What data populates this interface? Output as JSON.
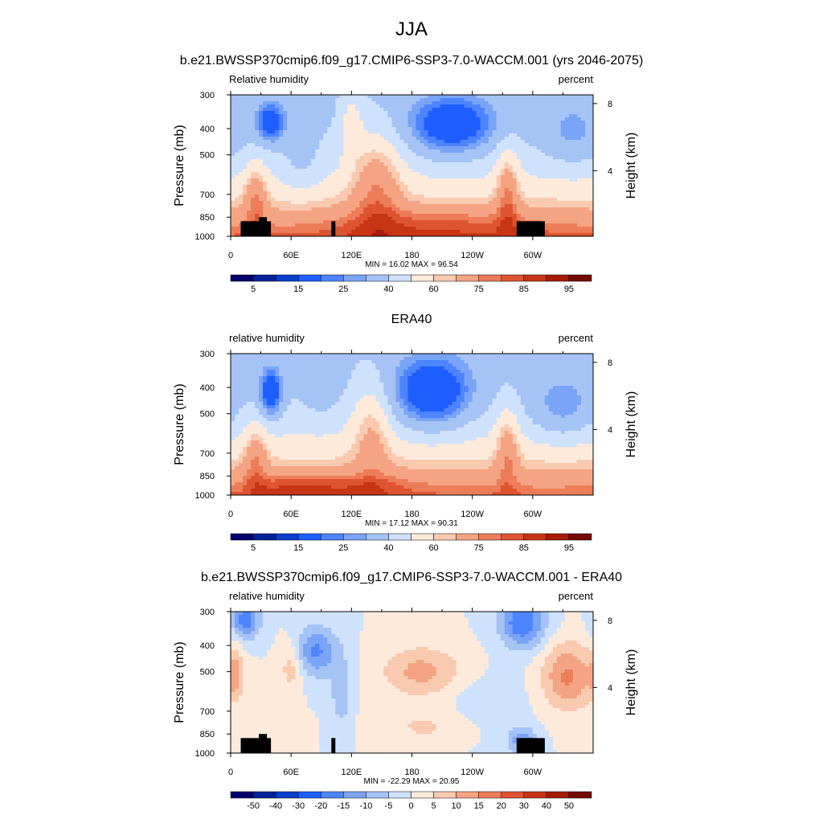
{
  "figure": {
    "title": "JJA"
  },
  "colorbars": {
    "absolute": {
      "colors": [
        "#03006d",
        "#00229a",
        "#0a3ecd",
        "#1e5eff",
        "#4d84ff",
        "#7aa4f5",
        "#a6c3f5",
        "#cfe2fd",
        "#fdeadb",
        "#f9cab0",
        "#f4a482",
        "#ed7c59",
        "#de5430",
        "#c73515",
        "#a61b07",
        "#750a00"
      ],
      "tick_labels": [
        "5",
        "15",
        "25",
        "40",
        "60",
        "75",
        "85",
        "95"
      ],
      "tick_boundaries": [
        1,
        3,
        5,
        7,
        9,
        11,
        13,
        15
      ]
    },
    "difference": {
      "colors": [
        "#03006d",
        "#00229a",
        "#0a3ecd",
        "#1e5eff",
        "#4d84ff",
        "#7aa4f5",
        "#a6c3f5",
        "#cfe2fd",
        "#fdeadb",
        "#f9cab0",
        "#f4a482",
        "#ed7c59",
        "#de5430",
        "#c73515",
        "#a61b07",
        "#750a00"
      ],
      "tick_labels": [
        "-50",
        "-40",
        "-30",
        "-20",
        "-15",
        "-10",
        "-5",
        "0",
        "5",
        "10",
        "15",
        "20",
        "30",
        "40",
        "50"
      ],
      "tick_boundaries": [
        1,
        2,
        3,
        4,
        5,
        6,
        7,
        8,
        9,
        10,
        11,
        12,
        13,
        14,
        15
      ]
    }
  },
  "axes": {
    "pressure_ticks": [
      "300",
      "400",
      "500",
      "700",
      "850",
      "1000"
    ],
    "pressure_values": [
      300,
      400,
      500,
      700,
      850,
      1000
    ],
    "height_ticks": [
      "8",
      "4"
    ],
    "height_values_km": [
      8,
      4
    ],
    "lon_ticks": [
      "0",
      "60E",
      "120E",
      "180",
      "120W",
      "60W"
    ],
    "lon_values": [
      0,
      60,
      120,
      180,
      240,
      300
    ],
    "ylabel": "Pressure (mb)",
    "ylabel_right": "Height (km)"
  },
  "chart_data": [
    {
      "type": "heatmap",
      "panel_title": "b.e21.BWSSP370cmip6.f09_g17.CMIP6-SSP3-7.0-WACCM.001 (yrs 2046-2075)",
      "left_label": "Relative humidity",
      "right_label": "percent",
      "min_text": "MIN =  16.02  MAX =  96.54",
      "min": 16.02,
      "max": 96.54,
      "colorbar": "absolute",
      "xlim": [
        0,
        360
      ],
      "ylim": [
        1000,
        300
      ],
      "topography": true
    },
    {
      "type": "heatmap",
      "panel_title": "ERA40",
      "left_label": "relative humidity",
      "right_label": "percent",
      "min_text": "MIN =  17.12  MAX =  90.31",
      "min": 17.12,
      "max": 90.31,
      "colorbar": "absolute",
      "xlim": [
        0,
        360
      ],
      "ylim": [
        1000,
        300
      ],
      "topography": false
    },
    {
      "type": "heatmap",
      "panel_title": "b.e21.BWSSP370cmip6.f09_g17.CMIP6-SSP3-7.0-WACCM.001 - ERA40",
      "left_label": "relative humidity",
      "right_label": "percent",
      "min_text": "MIN = -22.29  MAX =  20.95",
      "min": -22.29,
      "max": 20.95,
      "colorbar": "difference",
      "xlim": [
        0,
        360
      ],
      "ylim": [
        1000,
        300
      ],
      "topography": true
    }
  ]
}
